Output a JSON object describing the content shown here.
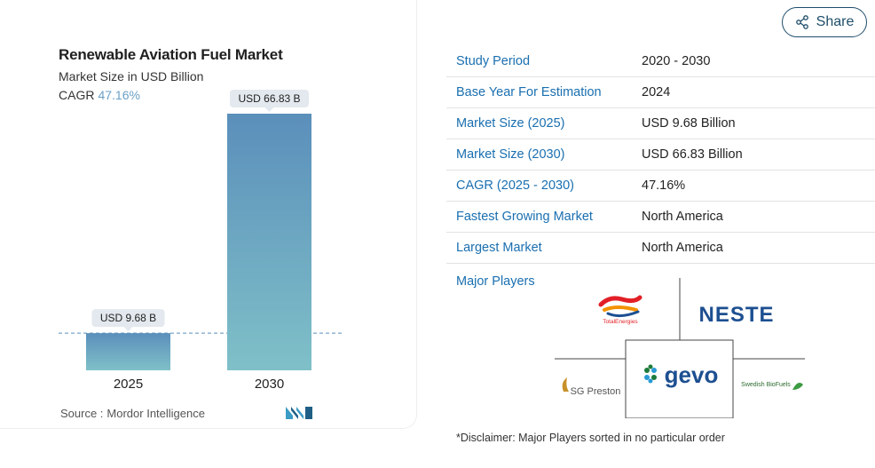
{
  "chart": {
    "title": "Renewable Aviation Fuel Market",
    "subtitle": "Market Size in USD Billion",
    "cagr_label": "CAGR",
    "cagr_value": "47.16%",
    "source_label": "Source :",
    "source_name": "Mordor Intelligence"
  },
  "chart_data": {
    "type": "bar",
    "categories": [
      "2025",
      "2030"
    ],
    "values": [
      9.68,
      66.83
    ],
    "data_labels": [
      "USD 9.68 B",
      "USD 66.83 B"
    ],
    "title": "Renewable Aviation Fuel Market",
    "subtitle": "Market Size in USD Billion",
    "xlabel": "",
    "ylabel": "",
    "ylim": [
      0,
      66.83
    ],
    "grid": false,
    "reference_line": "dashed line at 2025 value",
    "colors": {
      "bar_top": "#5b8fbb",
      "bar_bottom": "#7fc0c8",
      "label_bg": "#e3e9ee",
      "ref_line": "#5b8fbb"
    }
  },
  "share": {
    "label": "Share",
    "icon": "share-icon"
  },
  "stats": [
    {
      "label": "Study Period",
      "value": "2020 - 2030"
    },
    {
      "label": "Base Year For Estimation",
      "value": "2024"
    },
    {
      "label": "Market Size (2025)",
      "value": "USD 9.68 Billion"
    },
    {
      "label": "Market Size (2030)",
      "value": "USD 66.83 Billion"
    },
    {
      "label": "CAGR (2025 - 2030)",
      "value": "47.16%"
    },
    {
      "label": "Fastest Growing Market",
      "value": "North America"
    },
    {
      "label": "Largest Market",
      "value": "North America"
    }
  ],
  "players": {
    "label": "Major Players",
    "logos": [
      "TotalEnergies",
      "NESTE",
      "SG Preston",
      "gevo",
      "Swedish BioFuels"
    ]
  },
  "disclaimer": "*Disclaimer: Major Players sorted in no particular order"
}
